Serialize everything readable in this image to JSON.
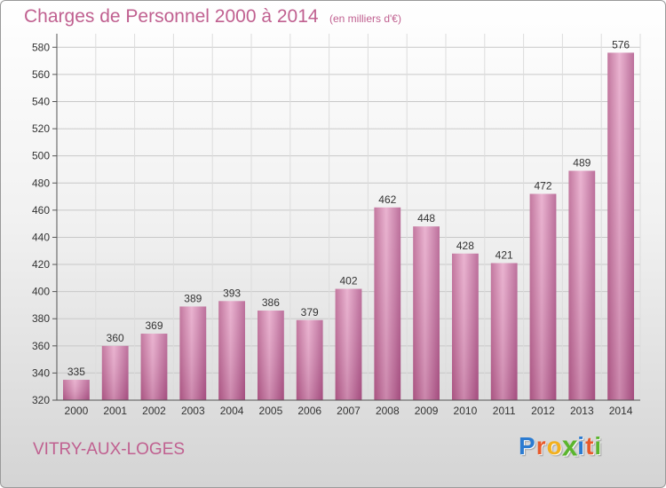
{
  "chart_data": {
    "type": "bar",
    "title": "Charges de Personnel 2000 à 2014",
    "subtitle": "(en milliers d'€)",
    "categories": [
      "2000",
      "2001",
      "2002",
      "2003",
      "2004",
      "2005",
      "2006",
      "2007",
      "2008",
      "2009",
      "2010",
      "2011",
      "2012",
      "2013",
      "2014"
    ],
    "values": [
      335,
      360,
      369,
      389,
      393,
      386,
      379,
      402,
      462,
      448,
      428,
      421,
      472,
      489,
      576
    ],
    "ylim": [
      320,
      590
    ],
    "yticks": [
      320,
      340,
      360,
      380,
      400,
      420,
      440,
      460,
      480,
      500,
      520,
      540,
      560,
      580
    ],
    "grid": true,
    "bar_color": "#d47aa6"
  },
  "footer": {
    "commune": "VITRY-AUX-LOGES",
    "logo_letters": [
      {
        "ch": "P",
        "color": "#2b7bd1"
      },
      {
        "ch": "r",
        "color": "#e85a2b"
      },
      {
        "ch": "o",
        "color": "#f2b01e"
      },
      {
        "ch": "x",
        "color": "#5bb52e"
      },
      {
        "ch": "i",
        "color": "#2b7bd1"
      },
      {
        "ch": "t",
        "color": "#e85a2b"
      },
      {
        "ch": "i",
        "color": "#5bb52e"
      }
    ]
  }
}
